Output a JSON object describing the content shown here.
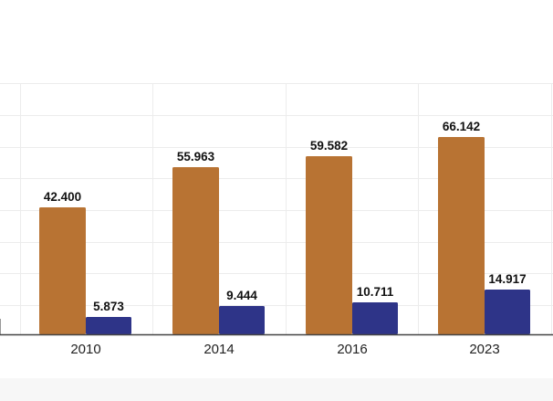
{
  "chart_data": {
    "type": "bar",
    "categories": [
      "2010",
      "2014",
      "2016",
      "2023"
    ],
    "series": [
      {
        "values": [
          42400,
          55963,
          59582,
          66142
        ],
        "labels": [
          "42.400",
          "55.963",
          "59.582",
          "66.142"
        ]
      },
      {
        "values": [
          5873,
          9444,
          10711,
          14917
        ],
        "labels": [
          "5.873",
          "9.444",
          "10.711",
          "14.917"
        ]
      }
    ],
    "ylim": [
      0,
      80000
    ],
    "grid": true,
    "colors": {
      "series": [
        "#B87333",
        "#2E3488"
      ],
      "grid": "#ececec",
      "axis": "#444444",
      "background": "#ffffff",
      "band": "#f7f7f7"
    }
  }
}
